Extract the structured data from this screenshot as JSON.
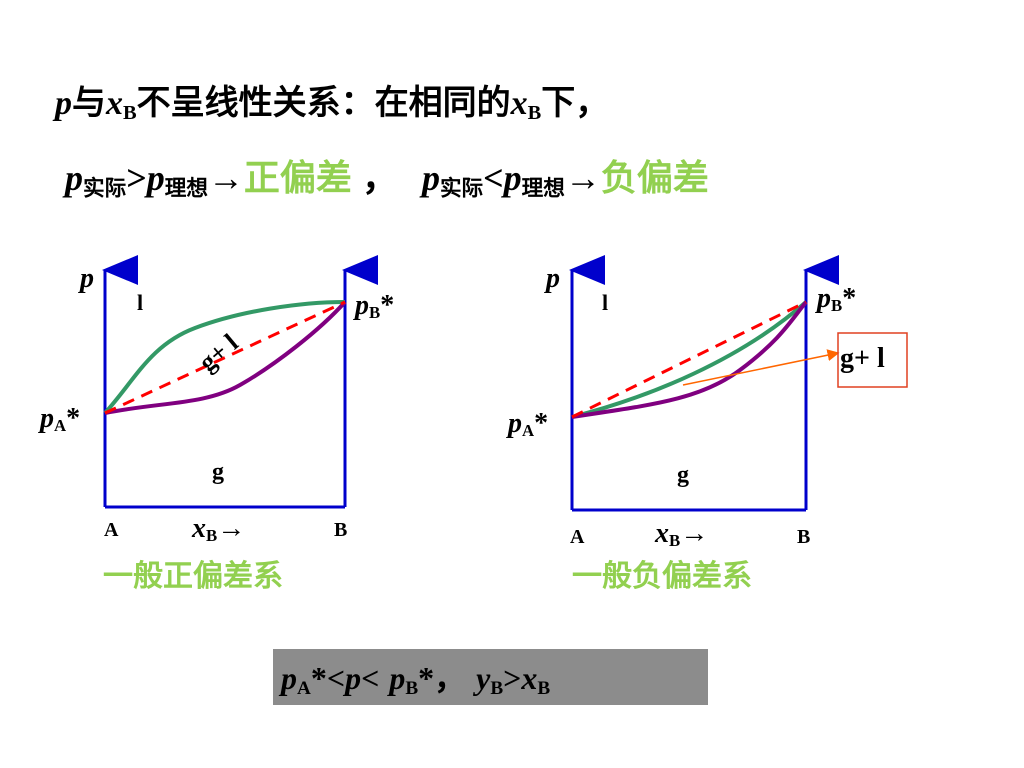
{
  "heading": [
    "p",
    "与",
    "x",
    "B",
    "不呈线性关系：在相同的",
    "x",
    "B",
    "下，"
  ],
  "deviation": [
    "p",
    "实际",
    ">",
    "p",
    "理想",
    "→",
    "正偏差",
    "，",
    "p",
    "实际",
    "<",
    "p",
    "理想",
    "→",
    "负偏差"
  ],
  "left_diagram": {
    "y_axis": "p",
    "liquid": "l",
    "two_phase": "g+ l",
    "pB": [
      "p",
      "B",
      "*"
    ],
    "pA": [
      "p",
      "A",
      "*"
    ],
    "gas": "g",
    "start": "A",
    "x_axis": [
      "x",
      "B",
      "→"
    ],
    "end": "B",
    "caption": "一般正偏差系"
  },
  "right_diagram": {
    "y_axis": "p",
    "liquid": "l",
    "two_phase": "g+ l",
    "pB": [
      "p",
      "B",
      "*"
    ],
    "pA": [
      "p",
      "A",
      "*"
    ],
    "gas": "g",
    "start": "A",
    "x_axis": [
      "x",
      "B",
      "→"
    ],
    "end": "B",
    "caption": "一般负偏差系"
  },
  "summary": [
    "p",
    "A",
    "*",
    "<",
    "p",
    "<",
    "p",
    "B",
    "*",
    "，",
    "y",
    "B",
    ">",
    "x",
    "B"
  ]
}
